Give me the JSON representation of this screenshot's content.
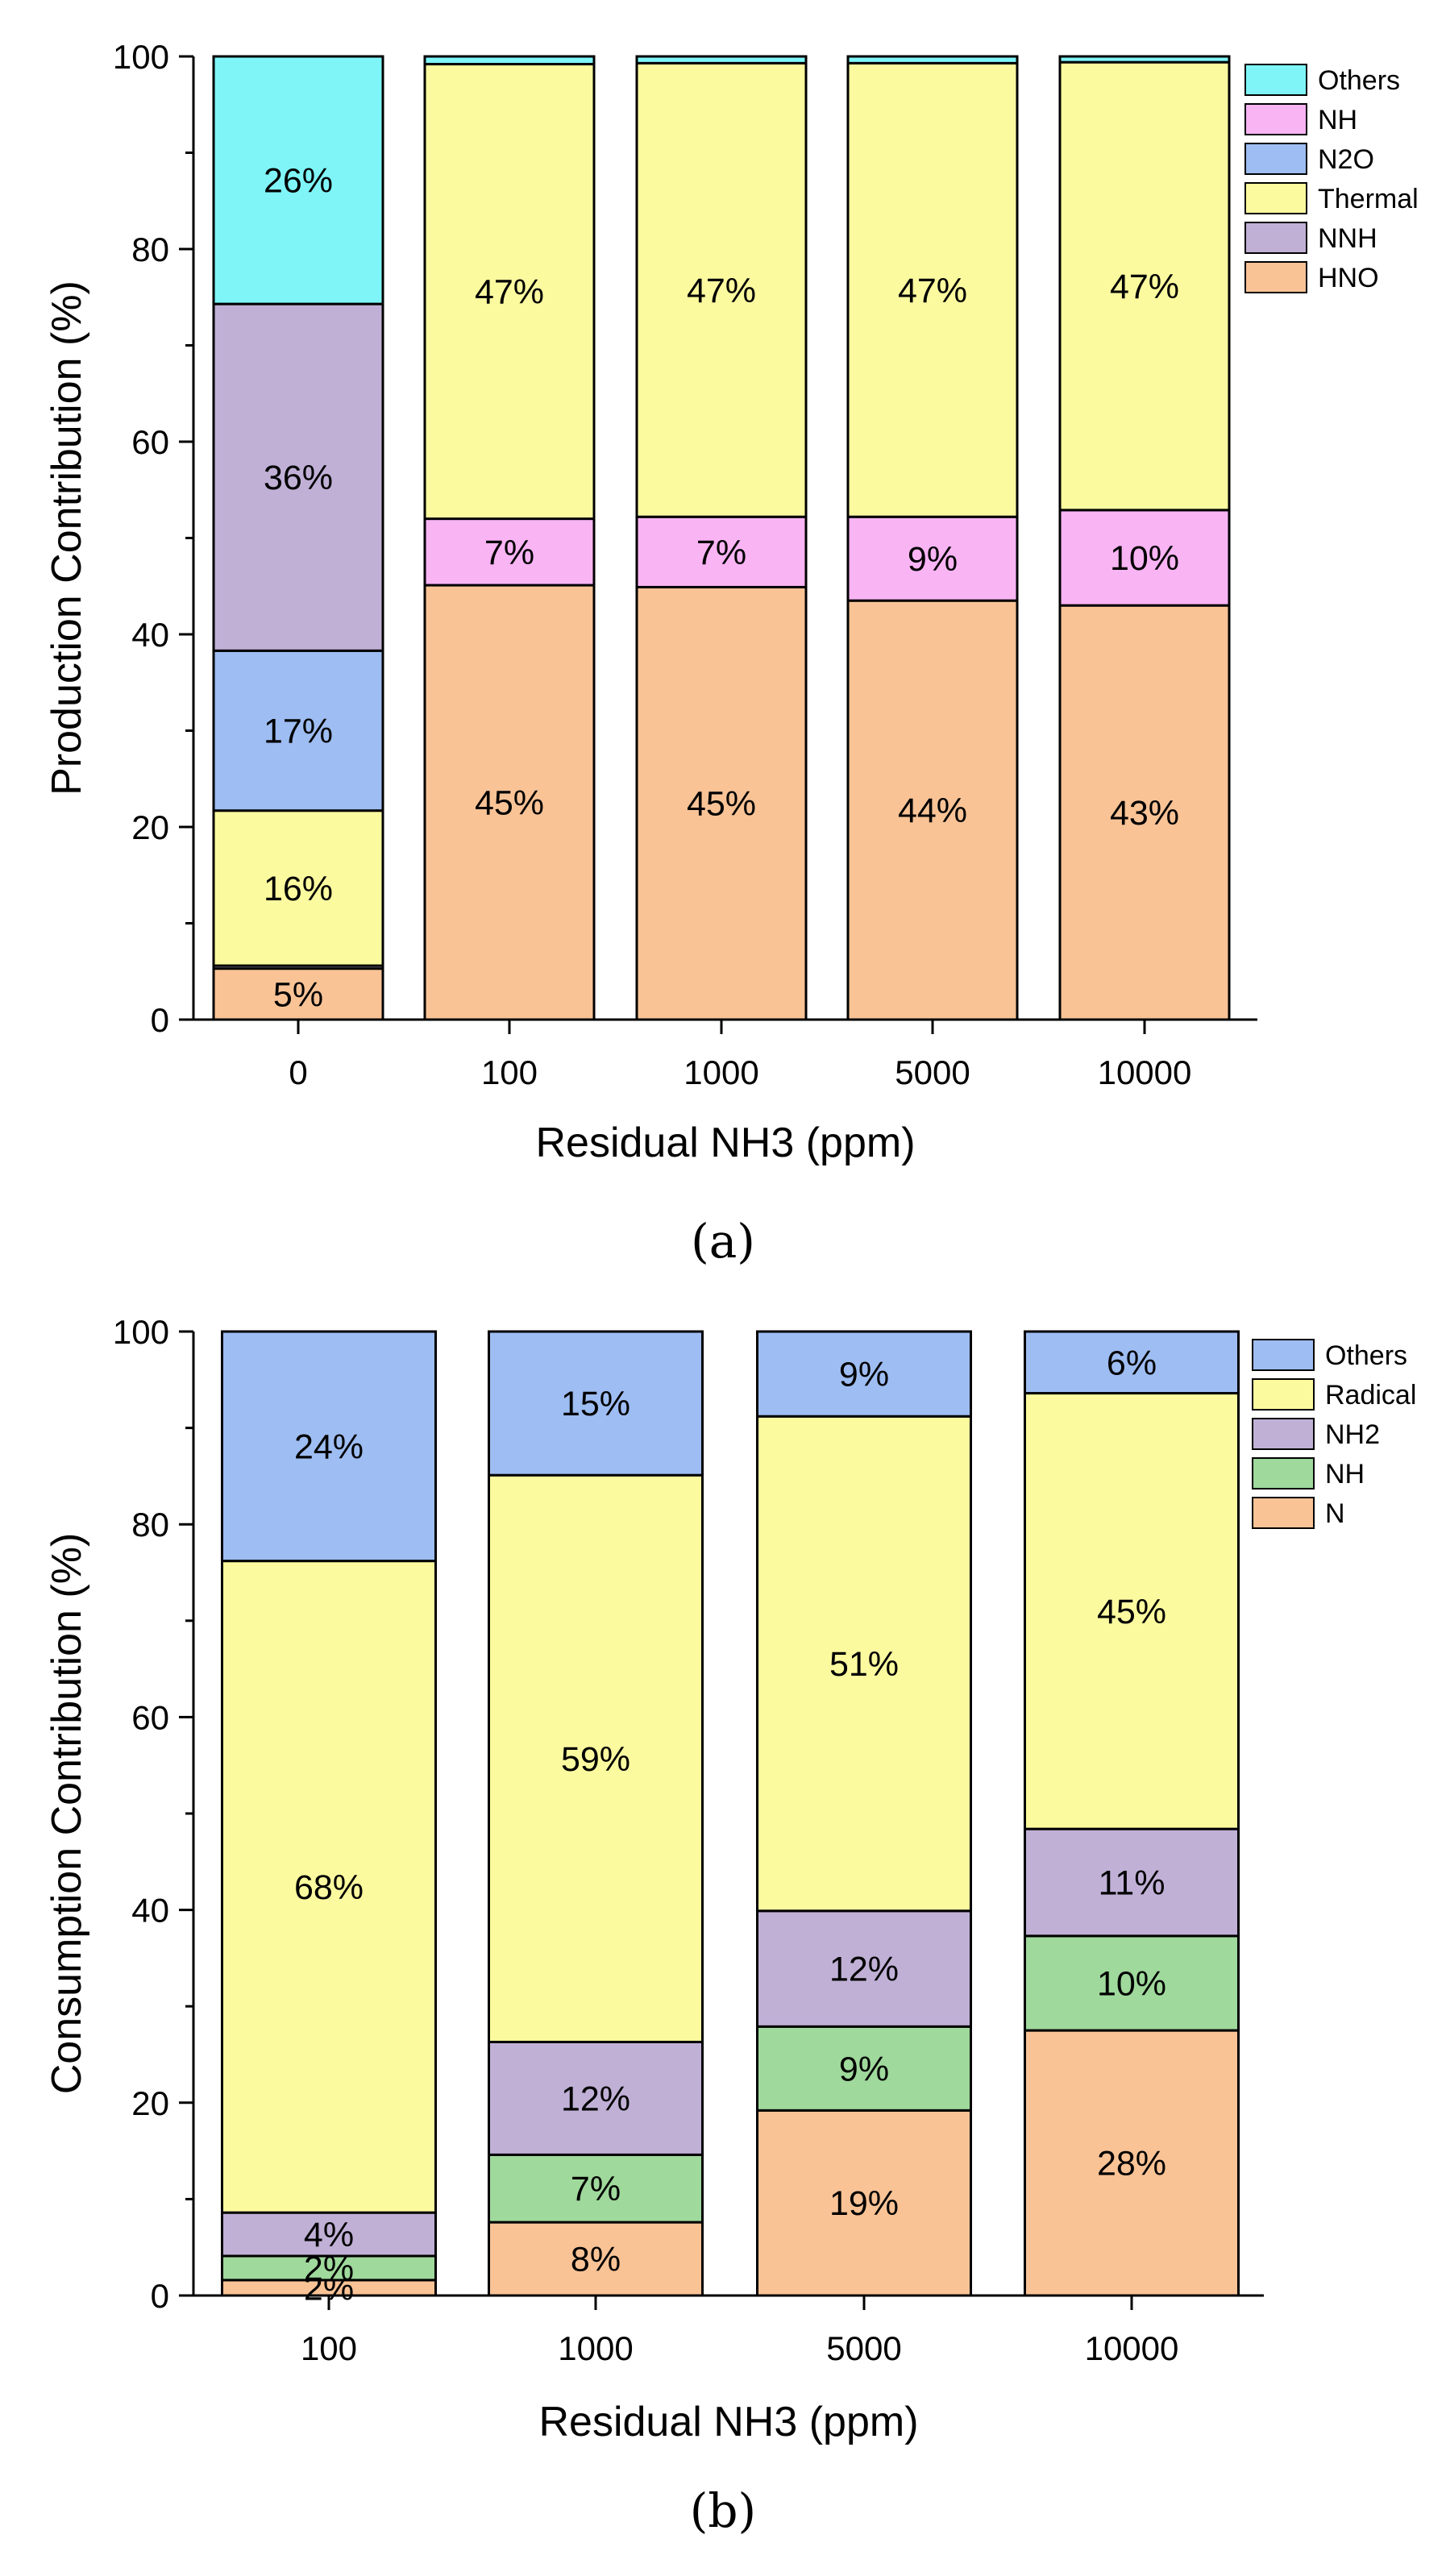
{
  "figure": {
    "label_a": "(a)",
    "label_b": "(b)"
  },
  "chart_data": [
    {
      "id": "a",
      "type": "bar",
      "stacked": true,
      "ylabel": "Production Contribution (%)",
      "xlabel": "Residual NH3 (ppm)",
      "ylim": [
        0,
        100
      ],
      "yticks": [
        0,
        20,
        40,
        60,
        80,
        100
      ],
      "categories": [
        "0",
        "100",
        "1000",
        "5000",
        "10000"
      ],
      "legend_position": "top-right",
      "legend_order": [
        "Others",
        "NH",
        "N2O",
        "Thermal",
        "NNH",
        "HNO"
      ],
      "series": [
        {
          "name": "HNO",
          "color": "#f9c396",
          "values": [
            5.3,
            45.1,
            44.9,
            43.5,
            43.0
          ],
          "labels": [
            "5%",
            "45%",
            "45%",
            "44%",
            "43%"
          ]
        },
        {
          "name": "NNH",
          "color": "#c0b0d6",
          "values": [
            0.3,
            0,
            0,
            0,
            0
          ],
          "labels": [
            "",
            "",
            "",
            "",
            ""
          ]
        },
        {
          "name": "Thermal",
          "color": "#fcfa9f",
          "values": [
            16.1,
            0,
            0,
            0,
            0
          ],
          "labels": [
            "16%",
            "",
            "",
            "",
            ""
          ]
        },
        {
          "name": "N2O",
          "color": "#9ebdf2",
          "values": [
            16.6,
            0,
            0,
            0,
            0
          ],
          "labels": [
            "17%",
            "",
            "",
            "",
            ""
          ]
        },
        {
          "name": "NNH",
          "color": "#c0b0d6",
          "values": [
            36.0,
            0,
            0,
            0,
            0
          ],
          "labels": [
            "36%",
            "",
            "",
            "",
            ""
          ]
        },
        {
          "name": "NH",
          "color": "#f9b4f4",
          "values": [
            0,
            6.9,
            7.3,
            8.7,
            9.9
          ],
          "labels": [
            "",
            "7%",
            "7%",
            "9%",
            "10%"
          ]
        },
        {
          "name": "Thermal",
          "color": "#fcfa9f",
          "values": [
            0,
            47.2,
            47.1,
            47.1,
            46.5
          ],
          "labels": [
            "",
            "47%",
            "47%",
            "47%",
            "47%"
          ]
        },
        {
          "name": "Others",
          "color": "#7ff5f8",
          "values": [
            25.7,
            0.8,
            0.7,
            0.7,
            0.6
          ],
          "labels": [
            "26%",
            "",
            "",
            "",
            ""
          ]
        }
      ]
    },
    {
      "id": "b",
      "type": "bar",
      "stacked": true,
      "ylabel": "Consumption Contribution (%)",
      "xlabel": "Residual NH3 (ppm)",
      "ylim": [
        0,
        100
      ],
      "yticks": [
        0,
        20,
        40,
        60,
        80,
        100
      ],
      "categories": [
        "100",
        "1000",
        "5000",
        "10000"
      ],
      "legend_position": "top-right",
      "legend_order": [
        "Others",
        "Radical",
        "NH2",
        "NH",
        "N"
      ],
      "series": [
        {
          "name": "N",
          "color": "#f9c396",
          "values": [
            1.6,
            7.6,
            19.2,
            27.5
          ],
          "labels": [
            "2%",
            "8%",
            "19%",
            "28%"
          ]
        },
        {
          "name": "NH",
          "color": "#9fd99c",
          "values": [
            2.5,
            7.0,
            8.7,
            9.8
          ],
          "labels": [
            "2%",
            "7%",
            "9%",
            "10%"
          ]
        },
        {
          "name": "NH2",
          "color": "#c0b0d6",
          "values": [
            4.5,
            11.7,
            12.0,
            11.1
          ],
          "labels": [
            "4%",
            "12%",
            "12%",
            "11%"
          ]
        },
        {
          "name": "Radical",
          "color": "#fcfa9f",
          "values": [
            67.6,
            58.8,
            51.3,
            45.2
          ],
          "labels": [
            "68%",
            "59%",
            "51%",
            "45%"
          ]
        },
        {
          "name": "Others",
          "color": "#9ebdf2",
          "values": [
            23.8,
            14.9,
            8.8,
            6.4
          ],
          "labels": [
            "24%",
            "15%",
            "9%",
            "6%"
          ]
        }
      ]
    }
  ]
}
